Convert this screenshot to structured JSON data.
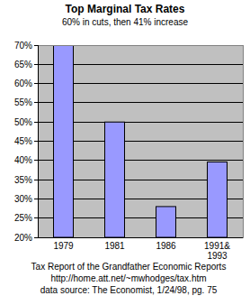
{
  "chart_data": {
    "type": "bar",
    "title": "Top Marginal Tax Rates",
    "subtitle": "60% in cuts, then 41% increase",
    "categories": [
      "1979",
      "1981",
      "1986",
      "1991& 1993"
    ],
    "values": [
      70,
      50,
      28,
      39.6
    ],
    "color": "#9999ff",
    "ylim": [
      20,
      70
    ],
    "yticks": [
      {
        "value": 20,
        "label": "20%"
      },
      {
        "value": 25,
        "label": "25%"
      },
      {
        "value": 30,
        "label": "30%"
      },
      {
        "value": 35,
        "label": "35%"
      },
      {
        "value": 40,
        "label": "40%"
      },
      {
        "value": 45,
        "label": "45%"
      },
      {
        "value": 50,
        "label": "50%"
      },
      {
        "value": 55,
        "label": "55%"
      },
      {
        "value": 60,
        "label": "60%"
      },
      {
        "value": 65,
        "label": "65%"
      },
      {
        "value": 70,
        "label": "70%"
      }
    ],
    "grid": true,
    "annotations": [
      "Tax Report of the Grandfather Economic Reports",
      "http://home.att.net/~mwhodges/tax.htm",
      "data source: The Economist, 1/24/98, pg. 75"
    ]
  }
}
